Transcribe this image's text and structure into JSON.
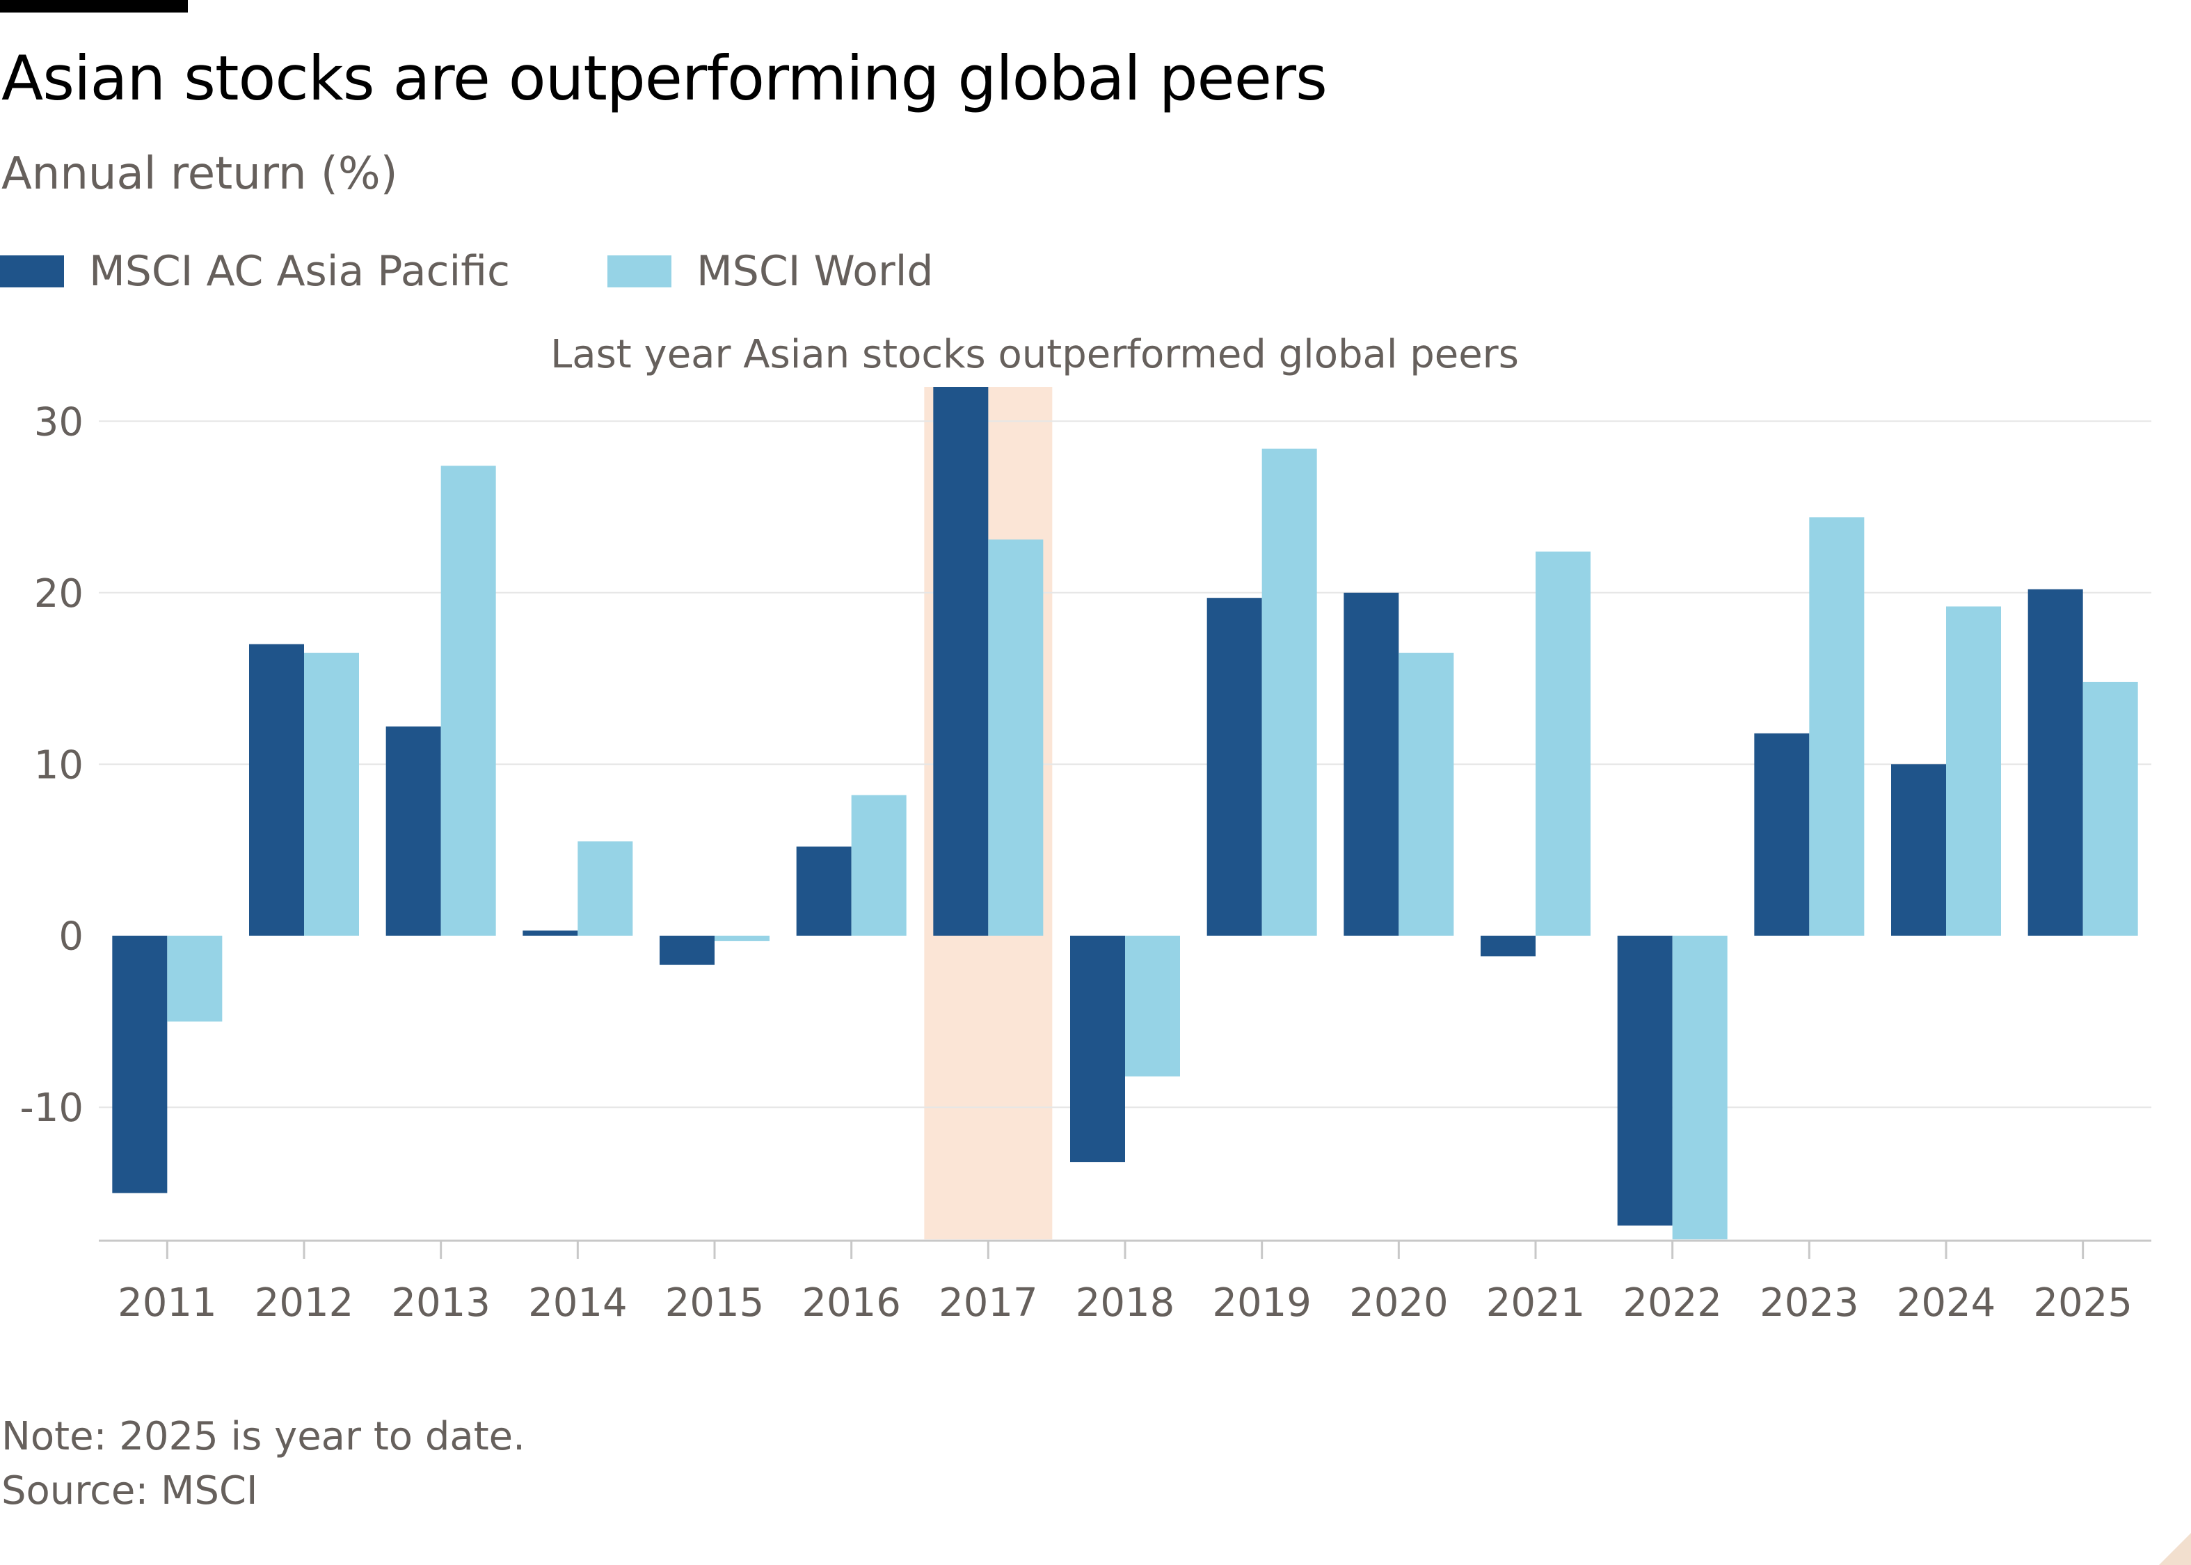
{
  "title": "Asian stocks are outperforming global peers",
  "subtitle": "Annual return (%)",
  "note": "Note: 2025 is year to date.",
  "source": "Source: MSCI",
  "colors": {
    "asia": "#1f548a",
    "world": "#96d3e6",
    "highlight": "#fbe5d6",
    "grid": "#e6e6e6",
    "axis": "#c8c8c8"
  },
  "chart_data": {
    "type": "bar",
    "categories": [
      "2011",
      "2012",
      "2013",
      "2014",
      "2015",
      "2016",
      "2017",
      "2018",
      "2019",
      "2020",
      "2021",
      "2022",
      "2023",
      "2024",
      "2025"
    ],
    "series": [
      {
        "name": "MSCI AC Asia Pacific",
        "values": [
          -15.0,
          17.0,
          12.2,
          0.3,
          -1.7,
          5.2,
          32.0,
          -13.2,
          19.7,
          20.0,
          -1.2,
          -16.9,
          11.8,
          10.0,
          20.2
        ]
      },
      {
        "name": "MSCI World",
        "values": [
          -5.0,
          16.5,
          27.4,
          5.5,
          -0.3,
          8.2,
          23.1,
          -8.2,
          28.4,
          16.5,
          22.4,
          -17.7,
          24.4,
          19.2,
          14.8
        ]
      }
    ],
    "ylim": [
      -17.7,
      32
    ],
    "yticks": [
      -10,
      0,
      10,
      20,
      30
    ],
    "grid": true,
    "legend_position": "top-left",
    "highlight_category": "2017",
    "annotation": "Last year Asian stocks outperformed global peers"
  }
}
